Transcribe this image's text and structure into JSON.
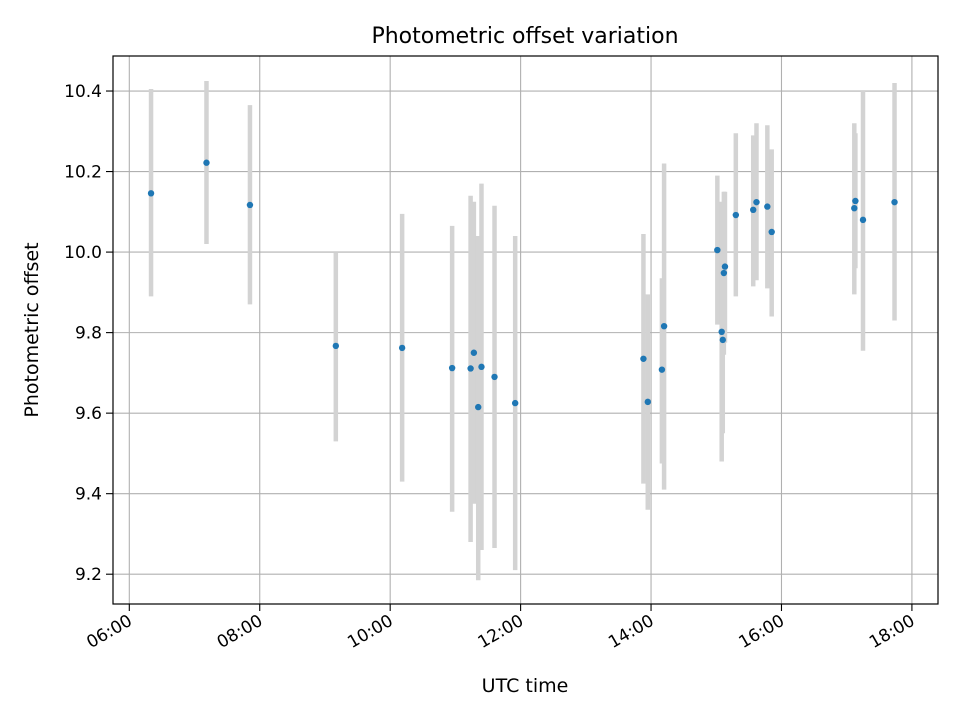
{
  "chart_data": {
    "type": "scatter",
    "title": "Photometric offset variation",
    "xlabel": "UTC time",
    "ylabel": "Photometric offset",
    "x_ticks": [
      "06:00",
      "08:00",
      "10:00",
      "12:00",
      "14:00",
      "16:00",
      "18:00"
    ],
    "y_ticks": [
      "9.2",
      "9.4",
      "9.6",
      "9.8",
      "10.0",
      "10.2",
      "10.4"
    ],
    "xlim": [
      "05:45",
      "18:24"
    ],
    "ylim": [
      9.126,
      10.487
    ],
    "grid": true,
    "error_bar_color": "#d3d3d3",
    "marker_color": "#1f77b4",
    "points": [
      {
        "t": "06:20",
        "y": 10.146,
        "lo": 9.89,
        "hi": 10.405
      },
      {
        "t": "07:11",
        "y": 10.222,
        "lo": 10.02,
        "hi": 10.425
      },
      {
        "t": "07:51",
        "y": 10.117,
        "lo": 9.87,
        "hi": 10.365
      },
      {
        "t": "09:10",
        "y": 9.767,
        "lo": 9.53,
        "hi": 10.0
      },
      {
        "t": "10:11",
        "y": 9.762,
        "lo": 9.43,
        "hi": 10.095
      },
      {
        "t": "10:57",
        "y": 9.712,
        "lo": 9.355,
        "hi": 10.065
      },
      {
        "t": "11:14",
        "y": 9.711,
        "lo": 9.28,
        "hi": 10.14
      },
      {
        "t": "11:17",
        "y": 9.75,
        "lo": 9.375,
        "hi": 10.125
      },
      {
        "t": "11:21",
        "y": 9.615,
        "lo": 9.185,
        "hi": 10.04
      },
      {
        "t": "11:24",
        "y": 9.715,
        "lo": 9.26,
        "hi": 10.17
      },
      {
        "t": "11:36",
        "y": 9.69,
        "lo": 9.265,
        "hi": 10.115
      },
      {
        "t": "11:55",
        "y": 9.625,
        "lo": 9.21,
        "hi": 10.04
      },
      {
        "t": "13:53",
        "y": 9.735,
        "lo": 9.425,
        "hi": 10.045
      },
      {
        "t": "13:57",
        "y": 9.628,
        "lo": 9.36,
        "hi": 9.895
      },
      {
        "t": "14:10",
        "y": 9.708,
        "lo": 9.475,
        "hi": 9.935
      },
      {
        "t": "14:12",
        "y": 9.816,
        "lo": 9.41,
        "hi": 10.22
      },
      {
        "t": "15:01",
        "y": 10.005,
        "lo": 9.82,
        "hi": 10.19
      },
      {
        "t": "15:05",
        "y": 9.802,
        "lo": 9.48,
        "hi": 10.125
      },
      {
        "t": "15:06",
        "y": 9.782,
        "lo": 9.55,
        "hi": 10.015
      },
      {
        "t": "15:07",
        "y": 9.948,
        "lo": 9.745,
        "hi": 10.15
      },
      {
        "t": "15:08",
        "y": 9.964,
        "lo": 9.775,
        "hi": 10.15
      },
      {
        "t": "15:18",
        "y": 10.092,
        "lo": 9.89,
        "hi": 10.295
      },
      {
        "t": "15:34",
        "y": 10.105,
        "lo": 9.915,
        "hi": 10.29
      },
      {
        "t": "15:37",
        "y": 10.124,
        "lo": 9.93,
        "hi": 10.32
      },
      {
        "t": "15:47",
        "y": 10.113,
        "lo": 9.91,
        "hi": 10.315
      },
      {
        "t": "15:51",
        "y": 10.05,
        "lo": 9.84,
        "hi": 10.255
      },
      {
        "t": "17:07",
        "y": 10.109,
        "lo": 9.895,
        "hi": 10.32
      },
      {
        "t": "17:08",
        "y": 10.127,
        "lo": 9.96,
        "hi": 10.295
      },
      {
        "t": "17:15",
        "y": 10.08,
        "lo": 9.755,
        "hi": 10.4
      },
      {
        "t": "17:44",
        "y": 10.124,
        "lo": 9.83,
        "hi": 10.42
      }
    ]
  }
}
